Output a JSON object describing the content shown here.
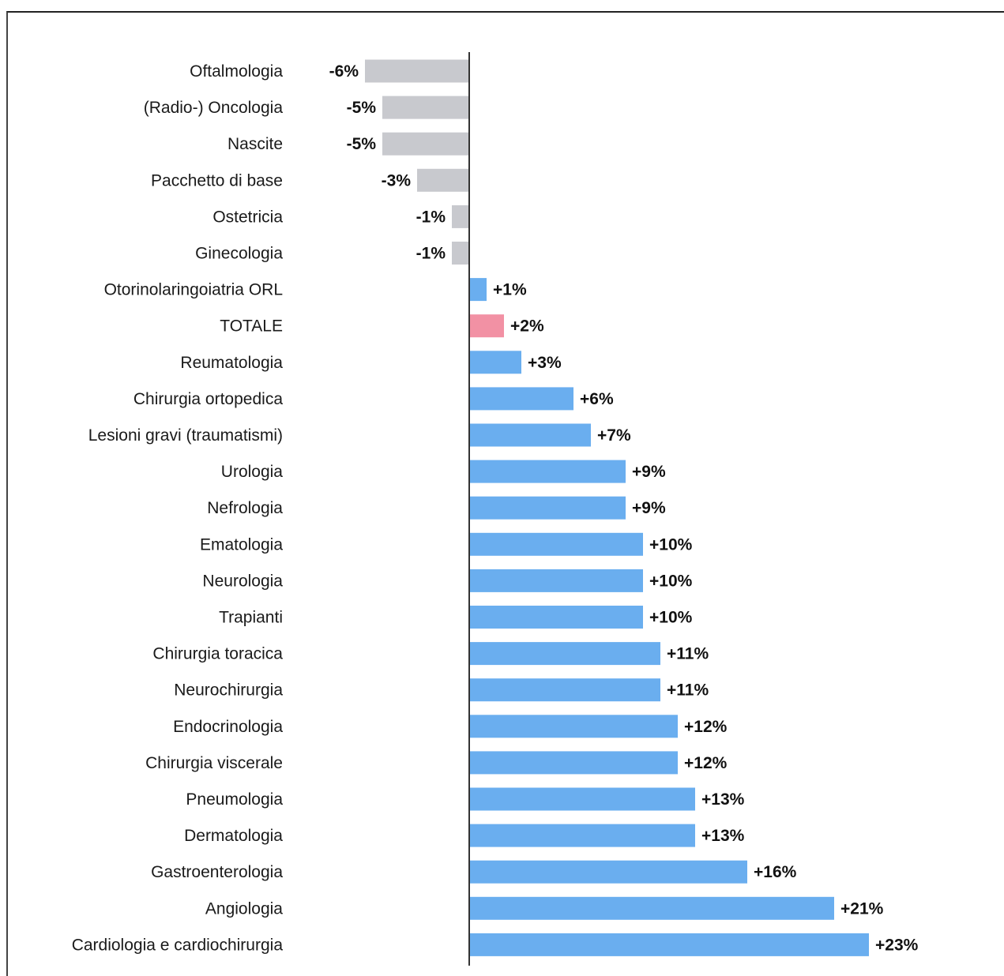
{
  "chart_data": {
    "type": "bar",
    "orientation": "horizontal",
    "categories": [
      "Oftalmologia",
      "(Radio-) Oncologia",
      "Nascite",
      "Pacchetto di base",
      "Ostetricia",
      "Ginecologia",
      "Otorinolaringoiatria ORL",
      "TOTALE",
      "Reumatologia",
      "Chirurgia ortopedica",
      "Lesioni gravi (traumatismi)",
      "Urologia",
      "Nefrologia",
      "Ematologia",
      "Neurologia",
      "Trapianti",
      "Chirurgia toracica",
      "Neurochirurgia",
      "Endocrinologia",
      "Chirurgia viscerale",
      "Pneumologia",
      "Dermatologia",
      "Gastroenterologia",
      "Angiologia",
      "Cardiologia e cardiochirurgia"
    ],
    "values": [
      -6,
      -5,
      -5,
      -3,
      -1,
      -1,
      1,
      2,
      3,
      6,
      7,
      9,
      9,
      10,
      10,
      10,
      11,
      11,
      12,
      12,
      13,
      13,
      16,
      21,
      23
    ],
    "value_labels": [
      "-6%",
      "-5%",
      "-5%",
      "-3%",
      "-1%",
      "-1%",
      "+1%",
      "+2%",
      "+3%",
      "+6%",
      "+7%",
      "+9%",
      "+9%",
      "+10%",
      "+10%",
      "+10%",
      "+11%",
      "+11%",
      "+12%",
      "+12%",
      "+13%",
      "+13%",
      "+16%",
      "+21%",
      "+23%"
    ],
    "unit": "%",
    "grid": false,
    "legend": "none",
    "colors": {
      "negative": "#c8c9ce",
      "positive": "#6aaeef",
      "total": "#f291a4",
      "axis": "#333333"
    },
    "highlight_category": "TOTALE"
  }
}
